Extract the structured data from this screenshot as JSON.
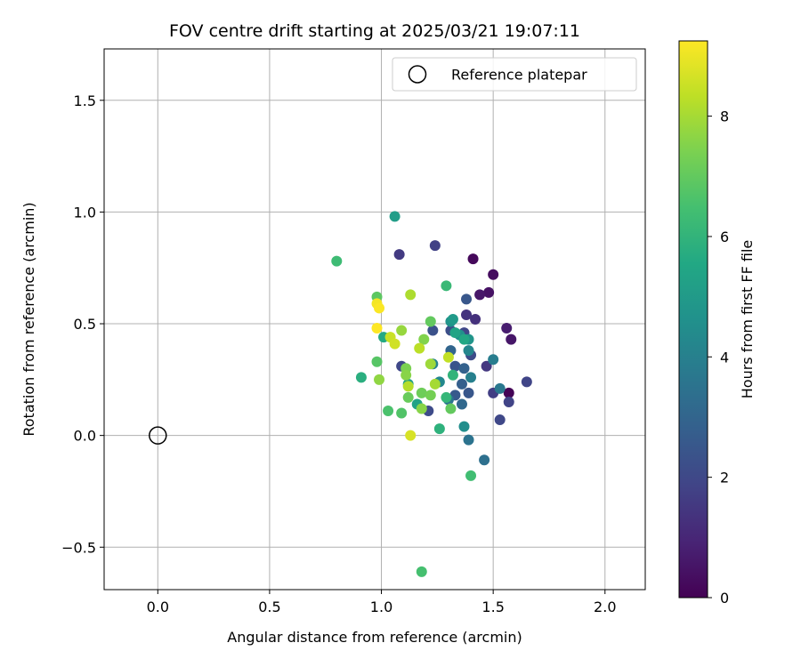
{
  "chart_data": {
    "type": "scatter",
    "title": "FOV centre drift starting at 2025/03/21 19:07:11",
    "xlabel": "Angular distance from reference (arcmin)",
    "ylabel": "Rotation from reference (arcmin)",
    "xlim": [
      -0.24,
      2.18
    ],
    "ylim": [
      -0.69,
      1.73
    ],
    "x_ticks": [
      0.0,
      0.5,
      1.0,
      1.5,
      2.0
    ],
    "x_tick_labels": [
      "0.0",
      "0.5",
      "1.0",
      "1.5",
      "2.0"
    ],
    "y_ticks": [
      -0.5,
      0.0,
      0.5,
      1.0,
      1.5
    ],
    "y_tick_labels": [
      "−0.5",
      "0.0",
      "0.5",
      "1.0",
      "1.5"
    ],
    "grid": true,
    "legend": {
      "position": "top-right",
      "entries": [
        "Reference platepar"
      ]
    },
    "reference_point": {
      "x": 0.0,
      "y": 0.0,
      "label": "Reference platepar"
    },
    "colorbar": {
      "label": "Hours from first FF file",
      "min": 0,
      "max": 9.25,
      "ticks": [
        0,
        2,
        4,
        6,
        8
      ],
      "tick_labels": [
        "0",
        "2",
        "4",
        "6",
        "8"
      ],
      "colormap": "viridis"
    },
    "points": [
      {
        "x": 1.57,
        "y": 0.19,
        "h": 0.05
      },
      {
        "x": 1.5,
        "y": 0.72,
        "h": 0.3
      },
      {
        "x": 1.48,
        "y": 0.64,
        "h": 0.45
      },
      {
        "x": 1.41,
        "y": 0.79,
        "h": 0.2
      },
      {
        "x": 1.44,
        "y": 0.63,
        "h": 0.6
      },
      {
        "x": 1.58,
        "y": 0.43,
        "h": 0.55
      },
      {
        "x": 1.56,
        "y": 0.48,
        "h": 0.75
      },
      {
        "x": 1.08,
        "y": 0.81,
        "h": 1.6
      },
      {
        "x": 1.24,
        "y": 0.85,
        "h": 1.8
      },
      {
        "x": 1.42,
        "y": 0.52,
        "h": 1.3
      },
      {
        "x": 1.38,
        "y": 0.54,
        "h": 1.4
      },
      {
        "x": 1.47,
        "y": 0.31,
        "h": 1.5
      },
      {
        "x": 1.5,
        "y": 0.19,
        "h": 1.7
      },
      {
        "x": 1.65,
        "y": 0.24,
        "h": 1.9
      },
      {
        "x": 1.57,
        "y": 0.15,
        "h": 1.85
      },
      {
        "x": 1.53,
        "y": 0.07,
        "h": 2.0
      },
      {
        "x": 1.4,
        "y": 0.36,
        "h": 2.1
      },
      {
        "x": 1.37,
        "y": 0.46,
        "h": 1.95
      },
      {
        "x": 1.31,
        "y": 0.47,
        "h": 2.2
      },
      {
        "x": 1.23,
        "y": 0.47,
        "h": 2.3
      },
      {
        "x": 1.09,
        "y": 0.31,
        "h": 2.0
      },
      {
        "x": 1.21,
        "y": 0.11,
        "h": 2.1
      },
      {
        "x": 1.33,
        "y": 0.31,
        "h": 2.4
      },
      {
        "x": 1.38,
        "y": 0.61,
        "h": 2.5
      },
      {
        "x": 1.39,
        "y": 0.19,
        "h": 2.5
      },
      {
        "x": 1.33,
        "y": 0.18,
        "h": 2.6
      },
      {
        "x": 1.36,
        "y": 0.23,
        "h": 2.8
      },
      {
        "x": 1.37,
        "y": 0.3,
        "h": 2.9
      },
      {
        "x": 1.31,
        "y": 0.38,
        "h": 3.0
      },
      {
        "x": 1.36,
        "y": 0.14,
        "h": 3.1
      },
      {
        "x": 1.46,
        "y": -0.11,
        "h": 3.4
      },
      {
        "x": 1.39,
        "y": -0.02,
        "h": 3.5
      },
      {
        "x": 1.3,
        "y": 0.16,
        "h": 3.6
      },
      {
        "x": 1.53,
        "y": 0.21,
        "h": 3.7
      },
      {
        "x": 1.5,
        "y": 0.34,
        "h": 3.9
      },
      {
        "x": 1.4,
        "y": 0.26,
        "h": 4.0
      },
      {
        "x": 1.39,
        "y": 0.38,
        "h": 4.2
      },
      {
        "x": 1.23,
        "y": 0.32,
        "h": 4.1
      },
      {
        "x": 1.26,
        "y": 0.24,
        "h": 4.3
      },
      {
        "x": 1.37,
        "y": 0.04,
        "h": 4.5
      },
      {
        "x": 1.35,
        "y": 0.45,
        "h": 4.6
      },
      {
        "x": 1.31,
        "y": 0.51,
        "h": 4.7
      },
      {
        "x": 1.39,
        "y": 0.43,
        "h": 4.8
      },
      {
        "x": 1.32,
        "y": 0.52,
        "h": 5.0
      },
      {
        "x": 1.06,
        "y": 0.98,
        "h": 5.1
      },
      {
        "x": 1.12,
        "y": 0.23,
        "h": 5.2
      },
      {
        "x": 1.16,
        "y": 0.14,
        "h": 5.3
      },
      {
        "x": 1.33,
        "y": 0.46,
        "h": 5.4
      },
      {
        "x": 1.37,
        "y": 0.43,
        "h": 5.5
      },
      {
        "x": 1.01,
        "y": 0.44,
        "h": 5.6
      },
      {
        "x": 0.91,
        "y": 0.26,
        "h": 5.8
      },
      {
        "x": 1.26,
        "y": 0.03,
        "h": 5.9
      },
      {
        "x": 1.32,
        "y": 0.27,
        "h": 6.0
      },
      {
        "x": 1.29,
        "y": 0.17,
        "h": 6.1
      },
      {
        "x": 1.29,
        "y": 0.67,
        "h": 6.2
      },
      {
        "x": 0.8,
        "y": 0.78,
        "h": 6.3
      },
      {
        "x": 1.4,
        "y": -0.18,
        "h": 6.4
      },
      {
        "x": 1.18,
        "y": -0.61,
        "h": 6.5
      },
      {
        "x": 1.03,
        "y": 0.11,
        "h": 6.6
      },
      {
        "x": 1.09,
        "y": 0.1,
        "h": 6.7
      },
      {
        "x": 0.98,
        "y": 0.33,
        "h": 6.8
      },
      {
        "x": 0.98,
        "y": 0.62,
        "h": 6.9
      },
      {
        "x": 1.22,
        "y": 0.51,
        "h": 7.0
      },
      {
        "x": 1.31,
        "y": 0.12,
        "h": 7.0
      },
      {
        "x": 1.18,
        "y": 0.19,
        "h": 7.2
      },
      {
        "x": 1.22,
        "y": 0.18,
        "h": 7.3
      },
      {
        "x": 1.12,
        "y": 0.17,
        "h": 7.1
      },
      {
        "x": 1.11,
        "y": 0.3,
        "h": 7.4
      },
      {
        "x": 1.19,
        "y": 0.43,
        "h": 7.5
      },
      {
        "x": 1.11,
        "y": 0.27,
        "h": 7.6
      },
      {
        "x": 0.99,
        "y": 0.25,
        "h": 7.7
      },
      {
        "x": 1.09,
        "y": 0.47,
        "h": 7.8
      },
      {
        "x": 1.22,
        "y": 0.32,
        "h": 7.9
      },
      {
        "x": 1.24,
        "y": 0.23,
        "h": 8.0
      },
      {
        "x": 1.18,
        "y": 0.12,
        "h": 7.6
      },
      {
        "x": 1.13,
        "y": 0.63,
        "h": 8.1
      },
      {
        "x": 1.12,
        "y": 0.22,
        "h": 8.2
      },
      {
        "x": 1.17,
        "y": 0.39,
        "h": 8.3
      },
      {
        "x": 1.3,
        "y": 0.35,
        "h": 8.4
      },
      {
        "x": 1.04,
        "y": 0.44,
        "h": 8.5
      },
      {
        "x": 1.06,
        "y": 0.41,
        "h": 8.6
      },
      {
        "x": 1.13,
        "y": 0.0,
        "h": 8.7
      },
      {
        "x": 0.98,
        "y": 0.59,
        "h": 9.1
      },
      {
        "x": 0.99,
        "y": 0.57,
        "h": 9.2
      },
      {
        "x": 0.98,
        "y": 0.48,
        "h": 9.25
      }
    ]
  }
}
